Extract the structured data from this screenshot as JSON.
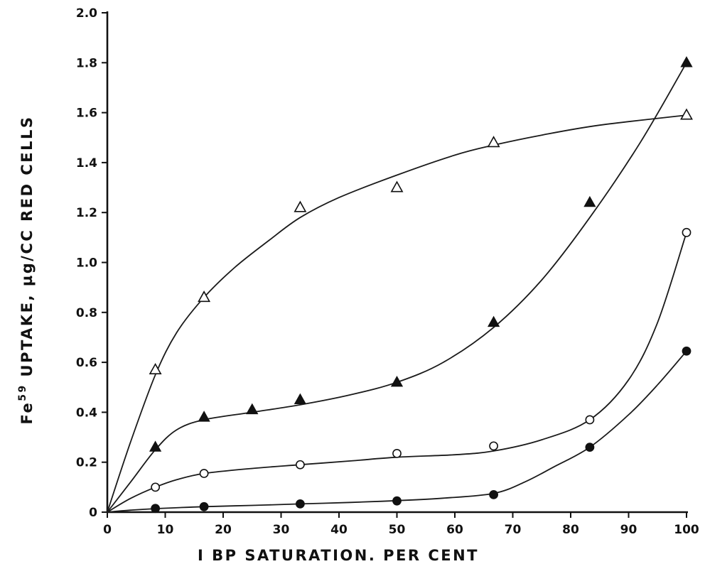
{
  "chart_data": {
    "type": "scatter",
    "title": "",
    "xlabel": "I BP SATURATION. PER CENT",
    "ylabel_prefix": "Fe",
    "ylabel_superscript": "59",
    "ylabel_suffix": " UPTAKE, µg/CC RED CELLS",
    "xlim": [
      0,
      100
    ],
    "ylim": [
      0,
      2.0
    ],
    "x_ticks": [
      0,
      10,
      20,
      30,
      40,
      50,
      60,
      70,
      80,
      90,
      100
    ],
    "x_tick_labels": [
      "0",
      "10",
      "20",
      "30",
      "40",
      "50",
      "60",
      "70",
      "80",
      "90",
      "100"
    ],
    "y_ticks": [
      0,
      0.2,
      0.4,
      0.6,
      0.8,
      1.0,
      1.2,
      1.4,
      1.6,
      1.8,
      2.0
    ],
    "y_tick_labels": [
      "0",
      "0.2",
      "0.4",
      "0.6",
      "0.8",
      "1.0",
      "1.2",
      "1.4",
      "1.6",
      "1.8",
      "2.0"
    ],
    "grid": false,
    "legend": "none",
    "series": [
      {
        "marker": "open-triangle",
        "points": [
          [
            8.3,
            0.57
          ],
          [
            16.7,
            0.86
          ],
          [
            33.3,
            1.22
          ],
          [
            50,
            1.3
          ],
          [
            66.7,
            1.48
          ],
          [
            100,
            1.59
          ]
        ],
        "curve": [
          [
            0,
            0
          ],
          [
            4,
            0.28
          ],
          [
            8.3,
            0.55
          ],
          [
            12,
            0.72
          ],
          [
            16.7,
            0.86
          ],
          [
            22,
            0.98
          ],
          [
            28,
            1.09
          ],
          [
            33.3,
            1.18
          ],
          [
            40,
            1.26
          ],
          [
            50,
            1.35
          ],
          [
            60,
            1.43
          ],
          [
            66.7,
            1.47
          ],
          [
            75,
            1.51
          ],
          [
            85,
            1.55
          ],
          [
            100,
            1.59
          ]
        ]
      },
      {
        "marker": "filled-triangle",
        "points": [
          [
            8.3,
            0.26
          ],
          [
            16.7,
            0.38
          ],
          [
            25,
            0.41
          ],
          [
            33.3,
            0.45
          ],
          [
            50,
            0.52
          ],
          [
            66.7,
            0.76
          ],
          [
            83.3,
            1.24
          ],
          [
            100,
            1.8
          ]
        ],
        "curve": [
          [
            0,
            0
          ],
          [
            4,
            0.12
          ],
          [
            8.3,
            0.25
          ],
          [
            12,
            0.33
          ],
          [
            16.7,
            0.37
          ],
          [
            25,
            0.4
          ],
          [
            33.3,
            0.43
          ],
          [
            42,
            0.47
          ],
          [
            50,
            0.52
          ],
          [
            58,
            0.6
          ],
          [
            66.7,
            0.74
          ],
          [
            75,
            0.93
          ],
          [
            83.3,
            1.18
          ],
          [
            92,
            1.48
          ],
          [
            100,
            1.8
          ]
        ]
      },
      {
        "marker": "open-circle",
        "points": [
          [
            8.3,
            0.1
          ],
          [
            16.7,
            0.155
          ],
          [
            33.3,
            0.19
          ],
          [
            50,
            0.235
          ],
          [
            66.7,
            0.265
          ],
          [
            83.3,
            0.37
          ],
          [
            100,
            1.12
          ]
        ],
        "curve": [
          [
            0,
            0
          ],
          [
            4,
            0.055
          ],
          [
            8.3,
            0.1
          ],
          [
            12,
            0.13
          ],
          [
            16.7,
            0.155
          ],
          [
            25,
            0.175
          ],
          [
            33.3,
            0.19
          ],
          [
            42,
            0.205
          ],
          [
            50,
            0.22
          ],
          [
            60,
            0.23
          ],
          [
            66.7,
            0.245
          ],
          [
            75,
            0.29
          ],
          [
            83.3,
            0.37
          ],
          [
            90,
            0.53
          ],
          [
            95,
            0.76
          ],
          [
            100,
            1.12
          ]
        ]
      },
      {
        "marker": "filled-circle",
        "points": [
          [
            8.3,
            0.015
          ],
          [
            16.7,
            0.022
          ],
          [
            33.3,
            0.033
          ],
          [
            50,
            0.045
          ],
          [
            66.7,
            0.07
          ],
          [
            83.3,
            0.26
          ],
          [
            100,
            0.645
          ]
        ],
        "curve": [
          [
            0,
            0
          ],
          [
            4,
            0.008
          ],
          [
            8.3,
            0.014
          ],
          [
            16.7,
            0.022
          ],
          [
            25,
            0.027
          ],
          [
            33.3,
            0.033
          ],
          [
            42,
            0.039
          ],
          [
            50,
            0.046
          ],
          [
            58,
            0.056
          ],
          [
            66.7,
            0.075
          ],
          [
            72,
            0.12
          ],
          [
            77,
            0.18
          ],
          [
            83.3,
            0.26
          ],
          [
            90,
            0.39
          ],
          [
            95,
            0.51
          ],
          [
            100,
            0.645
          ]
        ]
      }
    ]
  }
}
